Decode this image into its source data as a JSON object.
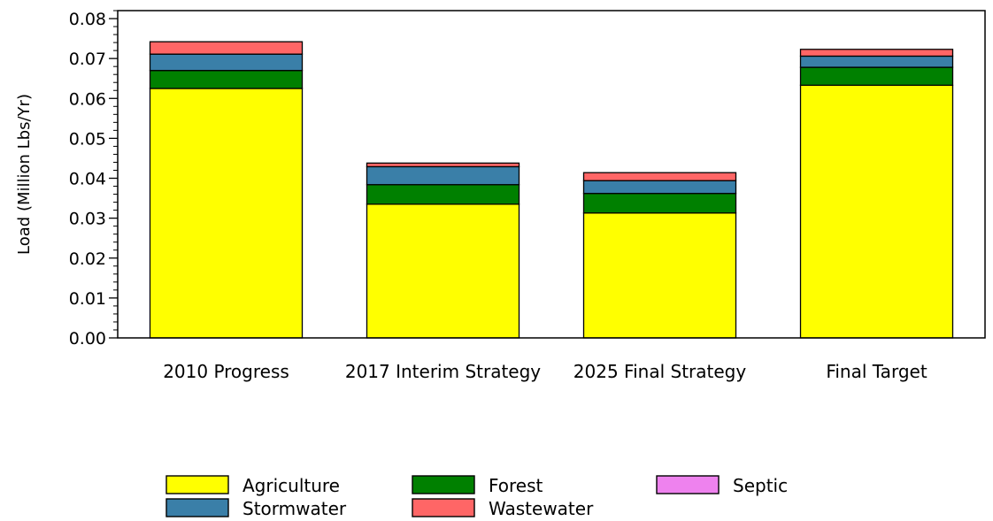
{
  "chart_data": {
    "type": "bar",
    "stacked": true,
    "title": "",
    "xlabel": "",
    "ylabel": "Load (Million Lbs/Yr)",
    "ylim": [
      0,
      0.082
    ],
    "yticks": [
      "0.00",
      "0.01",
      "0.02",
      "0.03",
      "0.04",
      "0.05",
      "0.06",
      "0.07",
      "0.08"
    ],
    "grid": false,
    "categories": [
      "2010 Progress",
      "2017 Interim Strategy",
      "2025 Final Strategy",
      "Final Target"
    ],
    "series": [
      {
        "name": "Agriculture",
        "color": "#ffff00",
        "values": [
          0.0625,
          0.0335,
          0.0313,
          0.0633
        ]
      },
      {
        "name": "Forest",
        "color": "#008000",
        "values": [
          0.0045,
          0.0049,
          0.0049,
          0.0045
        ]
      },
      {
        "name": "Stormwater",
        "color": "#3a7fa8",
        "values": [
          0.0041,
          0.0045,
          0.0032,
          0.0028
        ]
      },
      {
        "name": "Wastewater",
        "color": "#ff6666",
        "values": [
          0.0031,
          0.0009,
          0.002,
          0.0017
        ]
      },
      {
        "name": "Septic",
        "color": "#ee82ee",
        "values": [
          0,
          0,
          0,
          0
        ]
      }
    ],
    "legend": {
      "placement": "bottom",
      "order": [
        "Agriculture",
        "Forest",
        "Septic",
        "Stormwater",
        "Wastewater"
      ]
    }
  }
}
